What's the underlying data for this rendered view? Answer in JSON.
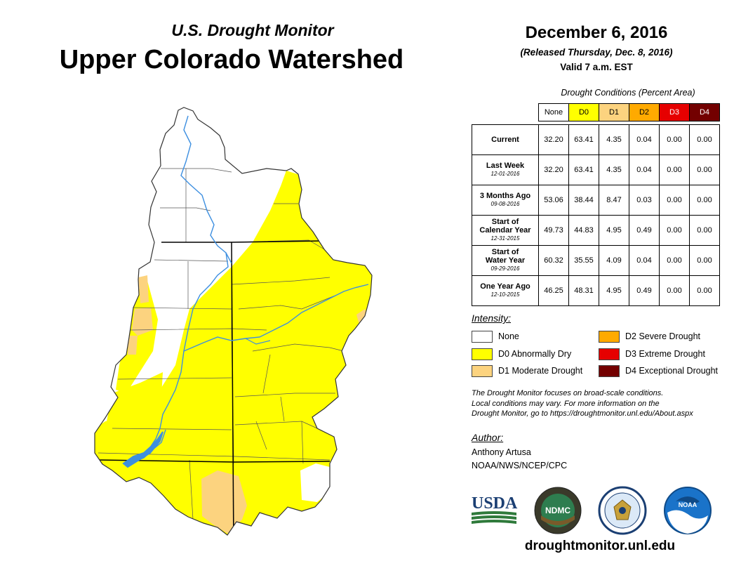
{
  "header": {
    "subtitle": "U.S. Drought Monitor",
    "title": "Upper Colorado Watershed",
    "date": "December 6, 2016",
    "released": "(Released Thursday, Dec. 8, 2016)",
    "valid": "Valid 7 a.m. EST"
  },
  "table": {
    "caption": "Drought Conditions (Percent Area)",
    "columns": [
      "None",
      "D0",
      "D1",
      "D2",
      "D3",
      "D4"
    ],
    "column_colors": [
      "#ffffff",
      "#ffff00",
      "#fcd37f",
      "#ffaa00",
      "#e60000",
      "#730000"
    ],
    "rows": [
      {
        "label": "Current",
        "date": "",
        "values": [
          "32.20",
          "63.41",
          "4.35",
          "0.04",
          "0.00",
          "0.00"
        ]
      },
      {
        "label": "Last Week",
        "date": "12-01-2016",
        "values": [
          "32.20",
          "63.41",
          "4.35",
          "0.04",
          "0.00",
          "0.00"
        ]
      },
      {
        "label": "3 Months Ago",
        "date": "09-08-2016",
        "values": [
          "53.06",
          "38.44",
          "8.47",
          "0.03",
          "0.00",
          "0.00"
        ]
      },
      {
        "label": "Start of Calendar Year",
        "date": "12-31-2015",
        "values": [
          "49.73",
          "44.83",
          "4.95",
          "0.49",
          "0.00",
          "0.00"
        ]
      },
      {
        "label": "Start of Water Year",
        "date": "09-29-2016",
        "values": [
          "60.32",
          "35.55",
          "4.09",
          "0.04",
          "0.00",
          "0.00"
        ]
      },
      {
        "label": "One Year Ago",
        "date": "12-10-2015",
        "values": [
          "46.25",
          "48.31",
          "4.95",
          "0.49",
          "0.00",
          "0.00"
        ]
      }
    ]
  },
  "legend": {
    "title": "Intensity:",
    "items": [
      {
        "label": "None",
        "color": "#ffffff"
      },
      {
        "label": "D0 Abnormally Dry",
        "color": "#ffff00"
      },
      {
        "label": "D1 Moderate Drought",
        "color": "#fcd37f"
      },
      {
        "label": "D2 Severe Drought",
        "color": "#ffaa00"
      },
      {
        "label": "D3 Extreme Drought",
        "color": "#e60000"
      },
      {
        "label": "D4 Exceptional Drought",
        "color": "#730000"
      }
    ]
  },
  "note": {
    "line1": "The Drought Monitor focuses on broad-scale conditions.",
    "line2": "Local conditions may vary. For more information on the",
    "line3": "Drought Monitor, go to https://droughtmonitor.unl.edu/About.aspx"
  },
  "author": {
    "title": "Author:",
    "name": "Anthony Artusa",
    "org": "NOAA/NWS/NCEP/CPC"
  },
  "logos": {
    "usda": "USDA",
    "ndmc": "NDMC",
    "noaa": "NOAA"
  },
  "website": "droughtmonitor.unl.edu"
}
